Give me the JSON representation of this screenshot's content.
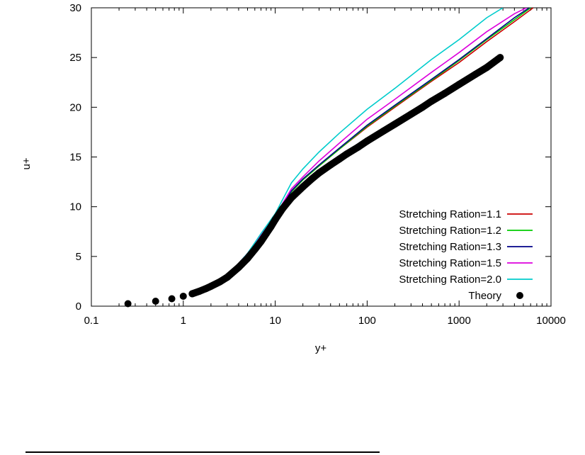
{
  "chart_data": {
    "type": "line",
    "title": "",
    "xlabel": "y+",
    "ylabel": "u+",
    "x_scale": "log",
    "xlim": [
      0.1,
      10000
    ],
    "ylim": [
      0,
      30
    ],
    "x_ticks": [
      0.1,
      1,
      10,
      100,
      1000,
      10000
    ],
    "x_tick_labels": [
      "0.1",
      "1",
      "10",
      "100",
      "1000",
      "10000"
    ],
    "y_ticks": [
      0,
      5,
      10,
      15,
      20,
      25,
      30
    ],
    "y_tick_labels": [
      "0",
      "5",
      "10",
      "15",
      "20",
      "25",
      "30"
    ],
    "grid": false,
    "legend_position": "bottom-right",
    "series": [
      {
        "name": "Stretching Ration=1.1",
        "color": "#cc0000",
        "style": "line",
        "x": [
          1.2,
          2,
          3,
          5,
          7,
          10,
          15,
          20,
          30,
          50,
          100,
          200,
          500,
          1000,
          2000,
          4000,
          6400
        ],
        "y": [
          1.4,
          2.1,
          3.0,
          5.3,
          7.2,
          9.0,
          11.5,
          12.7,
          14.1,
          15.8,
          18.0,
          20.0,
          22.6,
          24.5,
          26.6,
          28.6,
          30.0
        ]
      },
      {
        "name": "Stretching Ration=1.2",
        "color": "#00cc00",
        "style": "line",
        "x": [
          1.2,
          2,
          3,
          5,
          7,
          10,
          15,
          20,
          30,
          50,
          100,
          200,
          500,
          1000,
          2000,
          4000,
          6000
        ],
        "y": [
          1.4,
          2.1,
          3.0,
          5.3,
          7.2,
          9.0,
          11.5,
          12.7,
          14.1,
          15.8,
          18.1,
          20.1,
          22.7,
          24.7,
          26.8,
          28.8,
          30.0
        ]
      },
      {
        "name": "Stretching Ration=1.3",
        "color": "#000088",
        "style": "line",
        "x": [
          1.2,
          2,
          3,
          5,
          7,
          10,
          15,
          20,
          30,
          50,
          100,
          200,
          500,
          1000,
          2000,
          4000,
          5800
        ],
        "y": [
          1.4,
          2.1,
          3.0,
          5.3,
          7.2,
          9.0,
          11.6,
          12.8,
          14.2,
          15.9,
          18.2,
          20.2,
          22.8,
          24.8,
          26.9,
          29.0,
          30.0
        ]
      },
      {
        "name": "Stretching Ration=1.5",
        "color": "#dd00dd",
        "style": "line",
        "x": [
          1.2,
          2,
          3,
          5,
          7,
          10,
          15,
          20,
          30,
          50,
          100,
          200,
          500,
          1000,
          2000,
          4000,
          5400
        ],
        "y": [
          1.4,
          2.1,
          3.0,
          5.3,
          7.2,
          9.1,
          11.8,
          13.0,
          14.6,
          16.4,
          18.8,
          20.8,
          23.5,
          25.5,
          27.6,
          29.4,
          30.0
        ]
      },
      {
        "name": "Stretching Ration=2.0",
        "color": "#00cccc",
        "style": "line",
        "x": [
          1.2,
          2,
          3,
          5,
          7,
          10,
          15,
          20,
          30,
          50,
          100,
          200,
          500,
          1000,
          2000,
          3000
        ],
        "y": [
          1.4,
          2.1,
          3.0,
          5.3,
          7.3,
          9.3,
          12.4,
          13.8,
          15.5,
          17.4,
          19.8,
          21.9,
          24.8,
          26.8,
          29.0,
          30.0
        ]
      },
      {
        "name": "Theory",
        "color": "#000000",
        "style": "points",
        "x": [
          0.25,
          0.5,
          0.75,
          1.0,
          1.25,
          1.5,
          1.75,
          2.0,
          2.5,
          3,
          4,
          5,
          6,
          7,
          8,
          9,
          10,
          12,
          15,
          20,
          25,
          30,
          40,
          50,
          60,
          80,
          100,
          150,
          200,
          300,
          400,
          500,
          700,
          1000,
          1500,
          2000,
          2800
        ],
        "y": [
          0.25,
          0.5,
          0.75,
          1.0,
          1.25,
          1.5,
          1.75,
          2.0,
          2.45,
          2.9,
          3.9,
          4.8,
          5.7,
          6.5,
          7.3,
          8.0,
          8.7,
          9.8,
          10.9,
          12.0,
          12.8,
          13.4,
          14.2,
          14.8,
          15.3,
          16.0,
          16.6,
          17.6,
          18.3,
          19.3,
          20.0,
          20.6,
          21.4,
          22.3,
          23.3,
          24.0,
          25.0
        ]
      }
    ]
  }
}
